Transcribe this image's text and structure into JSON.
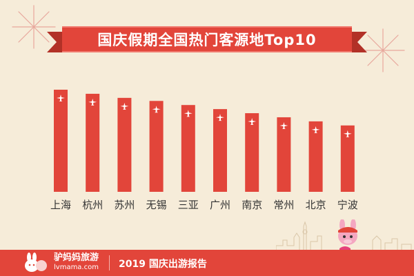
{
  "title": "国庆假期全国热门客源地Top10",
  "footer": {
    "brand": "驴妈妈旅游",
    "url": "lvmama.com",
    "report": "2019 国庆出游报告"
  },
  "colors": {
    "bar": "#e2453a",
    "background": "#f6ecd9",
    "text": "#333333",
    "accent": "#e2453a"
  },
  "chart_data": {
    "type": "bar",
    "title": "国庆假期全国热门客源地Top10",
    "categories": [
      "上海",
      "杭州",
      "苏州",
      "无锡",
      "三亚",
      "广州",
      "南京",
      "常州",
      "北京",
      "宁波"
    ],
    "values": [
      100,
      96,
      92,
      89,
      85,
      81,
      77,
      73,
      69,
      65
    ],
    "xlabel": "",
    "ylabel": "",
    "ylim": [
      0,
      100
    ],
    "grid": false,
    "legend": "none",
    "bar_icon": "airplane-icon"
  }
}
